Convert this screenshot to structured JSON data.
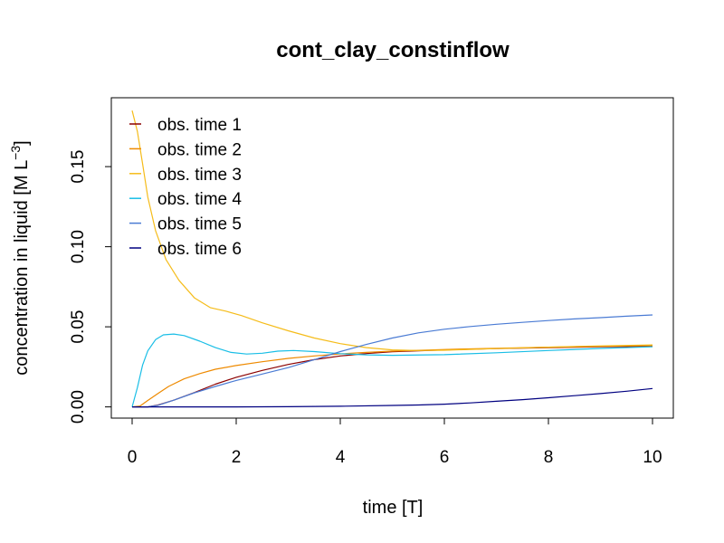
{
  "chart_data": {
    "type": "line",
    "title": "cont_clay_constinflow",
    "xlabel": "time [T]",
    "ylabel": "concentration in liquid [M L",
    "ylabel_sup": "−3",
    "ylabel_end": "]",
    "xlim": [
      -0.4,
      10.4
    ],
    "ylim": [
      -0.007,
      0.193
    ],
    "x_ticks": [
      0,
      2,
      4,
      6,
      8,
      10
    ],
    "x_tick_labels": [
      "0",
      "2",
      "4",
      "6",
      "8",
      "10"
    ],
    "y_ticks": [
      0.0,
      0.05,
      0.1,
      0.15
    ],
    "y_tick_labels": [
      "0.00",
      "0.05",
      "0.10",
      "0.15"
    ],
    "grid": false,
    "legend_position": "top-left",
    "series": [
      {
        "name": "obs. time  1",
        "color": "#8B0000",
        "points": [
          [
            0,
            0
          ],
          [
            0.3,
            0
          ],
          [
            0.5,
            0.0012
          ],
          [
            0.8,
            0.0042
          ],
          [
            1.2,
            0.009
          ],
          [
            1.6,
            0.0142
          ],
          [
            2.0,
            0.0185
          ],
          [
            2.5,
            0.0228
          ],
          [
            3.0,
            0.0265
          ],
          [
            3.5,
            0.0295
          ],
          [
            4.0,
            0.0318
          ],
          [
            4.5,
            0.0333
          ],
          [
            5.0,
            0.0344
          ],
          [
            6.0,
            0.0356
          ],
          [
            7.0,
            0.0364
          ],
          [
            8.0,
            0.037
          ],
          [
            9.0,
            0.0375
          ],
          [
            10.0,
            0.0378
          ]
        ]
      },
      {
        "name": "obs. time  2",
        "color": "#EE8A00",
        "points": [
          [
            0,
            0
          ],
          [
            0.15,
            0.0005
          ],
          [
            0.3,
            0.004
          ],
          [
            0.5,
            0.0085
          ],
          [
            0.7,
            0.0128
          ],
          [
            1.0,
            0.0175
          ],
          [
            1.3,
            0.0208
          ],
          [
            1.6,
            0.0235
          ],
          [
            2.0,
            0.0258
          ],
          [
            2.5,
            0.0282
          ],
          [
            3.0,
            0.0303
          ],
          [
            3.5,
            0.0318
          ],
          [
            4.0,
            0.0331
          ],
          [
            4.5,
            0.034
          ],
          [
            5.0,
            0.0348
          ],
          [
            6.0,
            0.0358
          ],
          [
            7.0,
            0.0366
          ],
          [
            8.0,
            0.0373
          ],
          [
            9.0,
            0.0378
          ],
          [
            10.0,
            0.0383
          ]
        ]
      },
      {
        "name": "obs. time  3",
        "color": "#F5BC1A",
        "points": [
          [
            0,
            0.185
          ],
          [
            0.1,
            0.172
          ],
          [
            0.2,
            0.152
          ],
          [
            0.3,
            0.131
          ],
          [
            0.45,
            0.11
          ],
          [
            0.65,
            0.092
          ],
          [
            0.9,
            0.079
          ],
          [
            1.2,
            0.068
          ],
          [
            1.5,
            0.062
          ],
          [
            1.8,
            0.0598
          ],
          [
            2.1,
            0.057
          ],
          [
            2.5,
            0.0525
          ],
          [
            3.0,
            0.0475
          ],
          [
            3.5,
            0.043
          ],
          [
            4.0,
            0.0395
          ],
          [
            4.5,
            0.037
          ],
          [
            5.0,
            0.0356
          ],
          [
            5.5,
            0.0352
          ],
          [
            6.0,
            0.0354
          ],
          [
            7.0,
            0.0364
          ],
          [
            8.0,
            0.0373
          ],
          [
            9.0,
            0.0381
          ],
          [
            10.0,
            0.0387
          ]
        ]
      },
      {
        "name": "obs. time  4",
        "color": "#19BEE6",
        "points": [
          [
            0,
            0
          ],
          [
            0.1,
            0.012
          ],
          [
            0.2,
            0.026
          ],
          [
            0.3,
            0.035
          ],
          [
            0.45,
            0.042
          ],
          [
            0.6,
            0.045
          ],
          [
            0.8,
            0.0455
          ],
          [
            1.0,
            0.0445
          ],
          [
            1.3,
            0.041
          ],
          [
            1.6,
            0.037
          ],
          [
            1.9,
            0.034
          ],
          [
            2.2,
            0.033
          ],
          [
            2.5,
            0.0335
          ],
          [
            2.8,
            0.0348
          ],
          [
            3.1,
            0.0352
          ],
          [
            3.5,
            0.0345
          ],
          [
            4.0,
            0.0332
          ],
          [
            4.5,
            0.0325
          ],
          [
            5.0,
            0.0322
          ],
          [
            6.0,
            0.0326
          ],
          [
            7.0,
            0.0338
          ],
          [
            8.0,
            0.0352
          ],
          [
            9.0,
            0.0365
          ],
          [
            10.0,
            0.0375
          ]
        ]
      },
      {
        "name": "obs. time  5",
        "color": "#4A7BD4",
        "points": [
          [
            0,
            0
          ],
          [
            0.3,
            0
          ],
          [
            0.5,
            0.001
          ],
          [
            0.8,
            0.0042
          ],
          [
            1.2,
            0.0088
          ],
          [
            1.6,
            0.0128
          ],
          [
            2.0,
            0.0165
          ],
          [
            2.5,
            0.0205
          ],
          [
            3.0,
            0.0245
          ],
          [
            3.5,
            0.0295
          ],
          [
            4.0,
            0.0345
          ],
          [
            4.5,
            0.039
          ],
          [
            5.0,
            0.043
          ],
          [
            5.5,
            0.0462
          ],
          [
            6.0,
            0.0485
          ],
          [
            6.5,
            0.0502
          ],
          [
            7.0,
            0.0516
          ],
          [
            7.5,
            0.0528
          ],
          [
            8.0,
            0.0539
          ],
          [
            8.5,
            0.0549
          ],
          [
            9.0,
            0.0557
          ],
          [
            9.5,
            0.0566
          ],
          [
            10.0,
            0.0574
          ]
        ]
      },
      {
        "name": "obs. time  6",
        "color": "#000080",
        "points": [
          [
            0,
            0
          ],
          [
            1.0,
            0
          ],
          [
            2.0,
            0
          ],
          [
            3.0,
            0.0001
          ],
          [
            4.0,
            0.0004
          ],
          [
            5.0,
            0.0009
          ],
          [
            5.5,
            0.0012
          ],
          [
            6.0,
            0.0017
          ],
          [
            6.5,
            0.0025
          ],
          [
            7.0,
            0.0035
          ],
          [
            7.5,
            0.0045
          ],
          [
            8.0,
            0.0057
          ],
          [
            8.5,
            0.007
          ],
          [
            9.0,
            0.0083
          ],
          [
            9.5,
            0.0098
          ],
          [
            10.0,
            0.0115
          ]
        ]
      }
    ]
  }
}
